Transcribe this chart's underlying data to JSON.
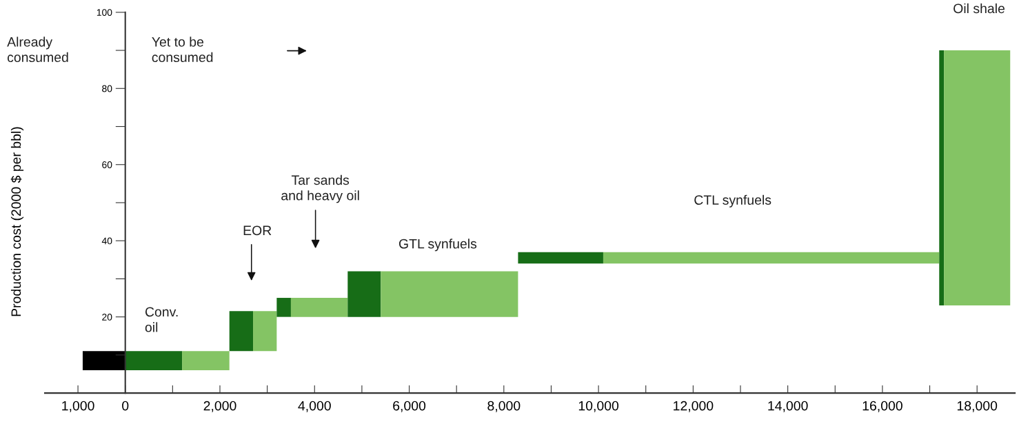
{
  "chart_data": {
    "type": "histogram",
    "ylabel": "Production cost (2000 $ per bbl)",
    "bins": [
      -900,
      0,
      1200,
      2200,
      2700,
      3200,
      3500,
      4700,
      5400,
      8300,
      10100,
      17200,
      17300,
      18700
    ],
    "base": [
      6,
      6,
      6,
      11,
      11,
      20,
      20,
      20,
      20,
      34,
      34,
      23,
      23
    ],
    "values": [
      5,
      5,
      5,
      10.5,
      10.5,
      5,
      5,
      12,
      12,
      3,
      3,
      67,
      67
    ],
    "colors": [
      "#000000",
      "#176d17",
      "#84c464",
      "#176d17",
      "#84c464",
      "#176d17",
      "#84c464",
      "#176d17",
      "#84c464",
      "#176d17",
      "#84c464",
      "#176d17",
      "#84c464"
    ],
    "xlim": [
      -1700,
      18800
    ],
    "ylim": [
      0,
      100
    ],
    "xticks": [
      {
        "value": -1000,
        "label": "1,000"
      },
      0,
      {
        "value": 1000,
        "label": null
      },
      {
        "value": 2000,
        "label": "2,000"
      },
      {
        "value": 3000,
        "label": null
      },
      {
        "value": 4000,
        "label": "4,000"
      },
      {
        "value": 5000,
        "label": null
      },
      {
        "value": 6000,
        "label": "6,000"
      },
      {
        "value": 7000,
        "label": null
      },
      {
        "value": 8000,
        "label": "8,000"
      },
      {
        "value": 9000,
        "label": null
      },
      {
        "value": 10000,
        "label": "10,000"
      },
      {
        "value": 11000,
        "label": null
      },
      {
        "value": 12000,
        "label": "12,000"
      },
      {
        "value": 13000,
        "label": null
      },
      {
        "value": 14000,
        "label": "14,000"
      },
      {
        "value": 15000,
        "label": null
      },
      {
        "value": 16000,
        "label": "16,000"
      },
      {
        "value": 17000,
        "label": null
      },
      {
        "value": 18000,
        "label": "18,000"
      }
    ],
    "yticks": [
      {
        "value": 10,
        "label": null
      },
      20,
      {
        "value": 30,
        "label": null
      },
      40,
      {
        "value": 50,
        "label": null
      },
      60,
      {
        "value": 70,
        "label": null
      },
      80,
      {
        "value": 90,
        "label": null
      },
      100
    ],
    "annotations": [
      "Already\nconsumed",
      "Yet to be\nconsumed",
      "Conv.\noil",
      "EOR",
      "Tar sands\nand heavy oil",
      "GTL synfuels",
      "CTL synfuels",
      "Oil shale"
    ]
  }
}
